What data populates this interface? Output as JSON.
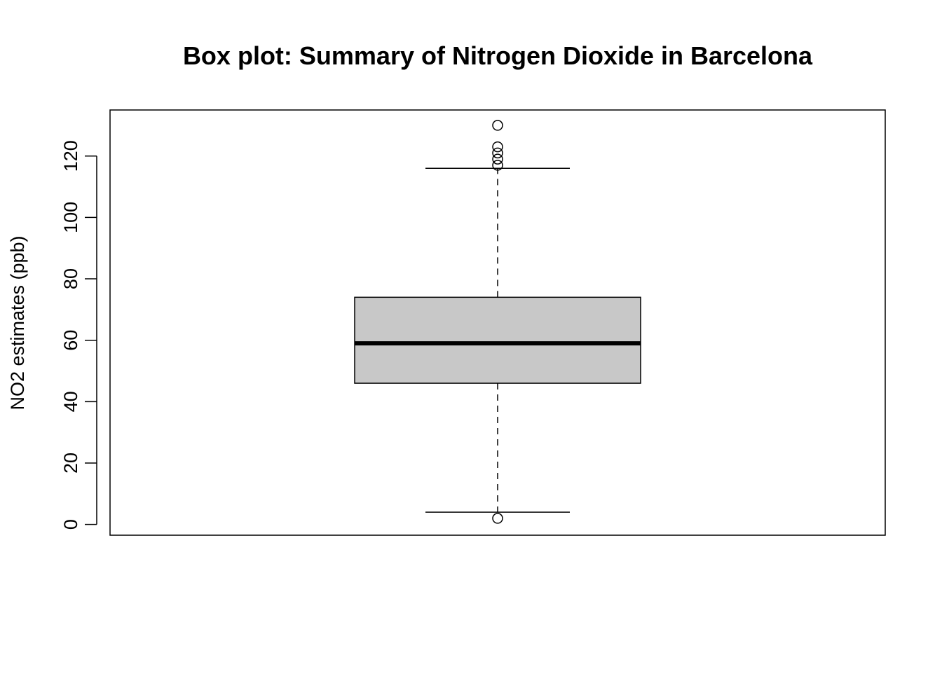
{
  "chart_data": {
    "type": "box",
    "title": "Box plot: Summary of Nitrogen Dioxide in Barcelona",
    "xlabel": "",
    "ylabel": "NO2 estimates (ppb)",
    "ylim": [
      -3.5,
      135
    ],
    "y_ticks": [
      0,
      20,
      40,
      60,
      80,
      100,
      120
    ],
    "y_tick_labels": [
      "0",
      "20",
      "40",
      "60",
      "80",
      "100",
      "120"
    ],
    "boxes": [
      {
        "whisker_low": 4,
        "q1": 46,
        "median": 59,
        "q3": 74,
        "whisker_high": 116,
        "outliers": [
          2,
          117,
          119,
          121,
          123,
          130
        ]
      }
    ],
    "colors": {
      "box_fill": "#c8c8c8",
      "stroke": "#000000"
    },
    "grid": false
  }
}
